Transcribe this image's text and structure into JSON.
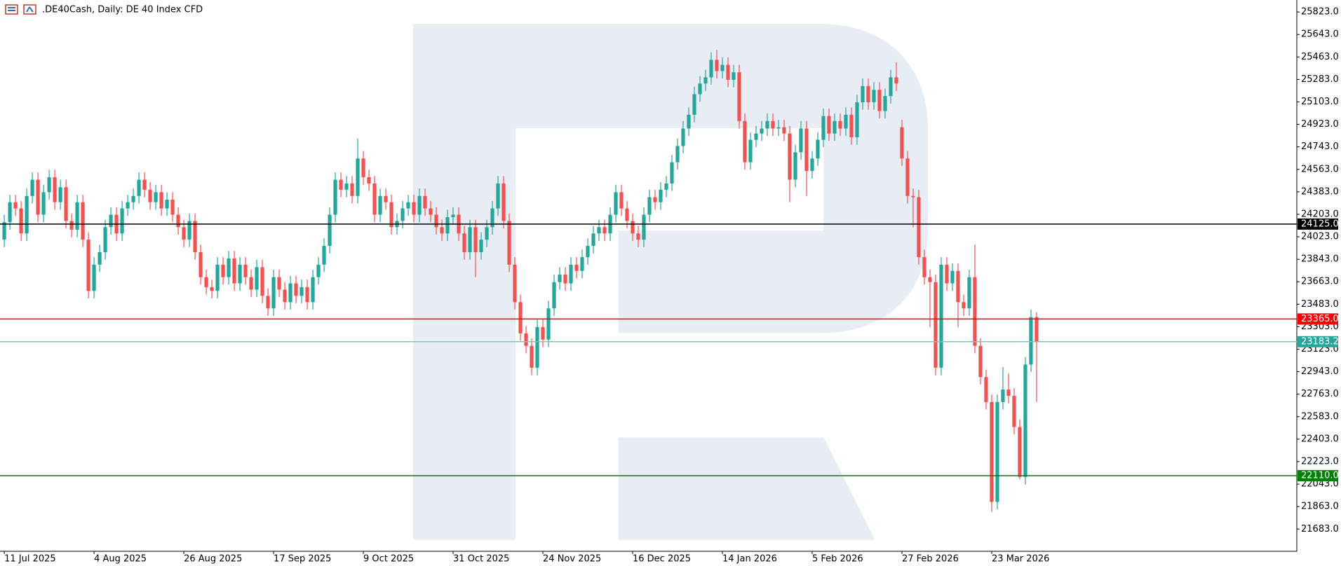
{
  "chart_data": {
    "type": "candlestick",
    "title": ".DE40Cash, Daily:  DE 40 Index CFD",
    "up_color": "#26a69a",
    "down_color": "#ef5350",
    "ylim": [
      21505,
      25919
    ],
    "yticks": [
      {
        "value": 25823,
        "label": "25823.0"
      },
      {
        "value": 25643,
        "label": "25643.0"
      },
      {
        "value": 25463,
        "label": "25463.0"
      },
      {
        "value": 25283,
        "label": "25283.0"
      },
      {
        "value": 25103,
        "label": "25103.0"
      },
      {
        "value": 24923,
        "label": "24923.0"
      },
      {
        "value": 24743,
        "label": "24743.0"
      },
      {
        "value": 24563,
        "label": "24563.0"
      },
      {
        "value": 24383,
        "label": "24383.0"
      },
      {
        "value": 24203,
        "label": "24203.0"
      },
      {
        "value": 24023,
        "label": "24023.0"
      },
      {
        "value": 23843,
        "label": "23843.0"
      },
      {
        "value": 23663,
        "label": "23663.0"
      },
      {
        "value": 23483,
        "label": "23483.0"
      },
      {
        "value": 23303,
        "label": "23303.0"
      },
      {
        "value": 23123,
        "label": "23123.0"
      },
      {
        "value": 22943,
        "label": "22943.0"
      },
      {
        "value": 22763,
        "label": "22763.0"
      },
      {
        "value": 22583,
        "label": "22583.0"
      },
      {
        "value": 22403,
        "label": "22403.0"
      },
      {
        "value": 22223,
        "label": "22223.0"
      },
      {
        "value": 22043,
        "label": "22043.0"
      },
      {
        "value": 21863,
        "label": "21863.0"
      },
      {
        "value": 21683,
        "label": "21683.0"
      }
    ],
    "x_labels": [
      {
        "index": 0,
        "label": "11 Jul 2025"
      },
      {
        "index": 16,
        "label": "4 Aug 2025"
      },
      {
        "index": 32,
        "label": "26 Aug 2025"
      },
      {
        "index": 48,
        "label": "17 Sep 2025"
      },
      {
        "index": 64,
        "label": "9 Oct 2025"
      },
      {
        "index": 80,
        "label": "31 Oct 2025"
      },
      {
        "index": 96,
        "label": "24 Nov 2025"
      },
      {
        "index": 112,
        "label": "16 Dec 2025"
      },
      {
        "index": 128,
        "label": "14 Jan 2026"
      },
      {
        "index": 144,
        "label": "5 Feb 2026"
      },
      {
        "index": 160,
        "label": "27 Feb 2026"
      },
      {
        "index": 176,
        "label": "23 Mar 2026"
      }
    ],
    "levels": [
      {
        "value": 24125,
        "label": "24125.0",
        "color": "#000000",
        "box": "#000000"
      },
      {
        "value": 23365,
        "label": "23365.0",
        "color": "#ff0000",
        "box": "#ff0000"
      },
      {
        "value": 23183.2,
        "label": "23183.2",
        "color": "#80c4c0",
        "box": "#26a69a"
      },
      {
        "value": 22110,
        "label": "22110.0",
        "color": "#008000",
        "box": "#008000"
      }
    ],
    "ohlc": [
      [
        24000,
        24200,
        23940,
        24140
      ],
      [
        24140,
        24360,
        24080,
        24300
      ],
      [
        24300,
        24360,
        24190,
        24250
      ],
      [
        24250,
        24310,
        23990,
        24050
      ],
      [
        24050,
        24410,
        23990,
        24350
      ],
      [
        24350,
        24540,
        24290,
        24480
      ],
      [
        24480,
        24540,
        24140,
        24200
      ],
      [
        24200,
        24440,
        24140,
        24380
      ],
      [
        24380,
        24560,
        24320,
        24500
      ],
      [
        24500,
        24560,
        24240,
        24300
      ],
      [
        24300,
        24480,
        24240,
        24420
      ],
      [
        24420,
        24480,
        24090,
        24150
      ],
      [
        24150,
        24210,
        24020,
        24080
      ],
      [
        24080,
        24360,
        24020,
        24300
      ],
      [
        24300,
        24360,
        23940,
        24000
      ],
      [
        24000,
        24060,
        23530,
        23590
      ],
      [
        23590,
        23860,
        23530,
        23800
      ],
      [
        23800,
        23960,
        23740,
        23900
      ],
      [
        23900,
        24160,
        23840,
        24100
      ],
      [
        24100,
        24260,
        24040,
        24200
      ],
      [
        24200,
        24260,
        23990,
        24050
      ],
      [
        24050,
        24310,
        23990,
        24250
      ],
      [
        24250,
        24360,
        24190,
        24300
      ],
      [
        24300,
        24410,
        24240,
        24350
      ],
      [
        24350,
        24540,
        24290,
        24480
      ],
      [
        24480,
        24540,
        24340,
        24400
      ],
      [
        24400,
        24460,
        24240,
        24300
      ],
      [
        24300,
        24440,
        24240,
        24380
      ],
      [
        24380,
        24440,
        24190,
        24250
      ],
      [
        24250,
        24380,
        24190,
        24320
      ],
      [
        24320,
        24380,
        24140,
        24200
      ],
      [
        24200,
        24260,
        24040,
        24100
      ],
      [
        24100,
        24160,
        23940,
        24000
      ],
      [
        24000,
        24210,
        23940,
        24150
      ],
      [
        24150,
        24210,
        23840,
        23900
      ],
      [
        23900,
        23960,
        23640,
        23700
      ],
      [
        23700,
        23760,
        23560,
        23620
      ],
      [
        23620,
        23680,
        23530,
        23590
      ],
      [
        23590,
        23860,
        23530,
        23800
      ],
      [
        23800,
        23860,
        23640,
        23700
      ],
      [
        23700,
        23910,
        23640,
        23850
      ],
      [
        23850,
        23910,
        23590,
        23650
      ],
      [
        23650,
        23860,
        23590,
        23800
      ],
      [
        23800,
        23860,
        23640,
        23700
      ],
      [
        23700,
        23760,
        23540,
        23600
      ],
      [
        23600,
        23840,
        23540,
        23780
      ],
      [
        23780,
        23840,
        23490,
        23550
      ],
      [
        23550,
        23610,
        23390,
        23450
      ],
      [
        23450,
        23760,
        23390,
        23700
      ],
      [
        23700,
        23760,
        23540,
        23600
      ],
      [
        23600,
        23660,
        23440,
        23500
      ],
      [
        23500,
        23710,
        23440,
        23650
      ],
      [
        23650,
        23710,
        23490,
        23550
      ],
      [
        23550,
        23680,
        23490,
        23620
      ],
      [
        23620,
        23680,
        23440,
        23500
      ],
      [
        23500,
        23760,
        23440,
        23700
      ],
      [
        23700,
        23860,
        23640,
        23800
      ],
      [
        23800,
        24010,
        23740,
        23950
      ],
      [
        23950,
        24260,
        23890,
        24200
      ],
      [
        24200,
        24540,
        24140,
        24480
      ],
      [
        24480,
        24540,
        24340,
        24400
      ],
      [
        24400,
        24510,
        24340,
        24450
      ],
      [
        24450,
        24510,
        24290,
        24350
      ],
      [
        24350,
        24810,
        24290,
        24650
      ],
      [
        24650,
        24710,
        24440,
        24500
      ],
      [
        24500,
        24560,
        24390,
        24450
      ],
      [
        24450,
        24510,
        24140,
        24200
      ],
      [
        24200,
        24410,
        24140,
        24350
      ],
      [
        24350,
        24410,
        24240,
        24300
      ],
      [
        24300,
        24360,
        24040,
        24100
      ],
      [
        24100,
        24210,
        24040,
        24150
      ],
      [
        24150,
        24310,
        24090,
        24250
      ],
      [
        24250,
        24360,
        24190,
        24300
      ],
      [
        24300,
        24360,
        24140,
        24200
      ],
      [
        24200,
        24410,
        24140,
        24350
      ],
      [
        24350,
        24410,
        24190,
        24250
      ],
      [
        24250,
        24310,
        24140,
        24200
      ],
      [
        24200,
        24260,
        24040,
        24100
      ],
      [
        24100,
        24160,
        23990,
        24050
      ],
      [
        24050,
        24240,
        23990,
        24180
      ],
      [
        24180,
        24260,
        24120,
        24200
      ],
      [
        24200,
        24260,
        23990,
        24050
      ],
      [
        24050,
        24110,
        23840,
        23900
      ],
      [
        23900,
        24160,
        23840,
        24100
      ],
      [
        24100,
        24160,
        23700,
        23900
      ],
      [
        23900,
        24060,
        23840,
        24000
      ],
      [
        24000,
        24160,
        23940,
        24100
      ],
      [
        24100,
        24310,
        24040,
        24250
      ],
      [
        24250,
        24510,
        24190,
        24450
      ],
      [
        24450,
        24510,
        24090,
        24150
      ],
      [
        24150,
        24210,
        23740,
        23800
      ],
      [
        23800,
        23860,
        23440,
        23500
      ],
      [
        23500,
        23560,
        23190,
        23250
      ],
      [
        23250,
        23310,
        23090,
        23150
      ],
      [
        23150,
        23210,
        22915,
        22975
      ],
      [
        22975,
        23360,
        22915,
        23300
      ],
      [
        23300,
        23360,
        23140,
        23200
      ],
      [
        23200,
        23510,
        23140,
        23450
      ],
      [
        23450,
        23720,
        23390,
        23660
      ],
      [
        23660,
        23780,
        23600,
        23720
      ],
      [
        23720,
        23780,
        23590,
        23650
      ],
      [
        23650,
        23860,
        23590,
        23800
      ],
      [
        23800,
        23860,
        23690,
        23750
      ],
      [
        23750,
        23920,
        23690,
        23860
      ],
      [
        23860,
        24010,
        23800,
        23950
      ],
      [
        23950,
        24110,
        23890,
        24050
      ],
      [
        24050,
        24160,
        23990,
        24100
      ],
      [
        24100,
        24160,
        23990,
        24050
      ],
      [
        24050,
        24260,
        23990,
        24200
      ],
      [
        24200,
        24440,
        24140,
        24380
      ],
      [
        24380,
        24440,
        24190,
        24250
      ],
      [
        24250,
        24310,
        24090,
        24150
      ],
      [
        24150,
        24210,
        23990,
        24050
      ],
      [
        24050,
        24110,
        23940,
        24000
      ],
      [
        24000,
        24260,
        23940,
        24200
      ],
      [
        24200,
        24400,
        24140,
        24340
      ],
      [
        24340,
        24400,
        24240,
        24300
      ],
      [
        24300,
        24460,
        24240,
        24400
      ],
      [
        24400,
        24510,
        24340,
        24450
      ],
      [
        24450,
        24680,
        24390,
        24620
      ],
      [
        24620,
        24810,
        24560,
        24750
      ],
      [
        24750,
        24950,
        24690,
        24890
      ],
      [
        24890,
        25060,
        24830,
        25000
      ],
      [
        25000,
        25225,
        24940,
        25165
      ],
      [
        25165,
        25310,
        25105,
        25250
      ],
      [
        25250,
        25360,
        25190,
        25300
      ],
      [
        25300,
        25500,
        25240,
        25440
      ],
      [
        25440,
        25520,
        25290,
        25350
      ],
      [
        25350,
        25460,
        25290,
        25400
      ],
      [
        25400,
        25460,
        25220,
        25280
      ],
      [
        25280,
        25400,
        25220,
        25340
      ],
      [
        25340,
        25400,
        24890,
        24950
      ],
      [
        24950,
        25010,
        24560,
        24620
      ],
      [
        24620,
        24860,
        24560,
        24800
      ],
      [
        24800,
        24910,
        24740,
        24850
      ],
      [
        24850,
        24950,
        24790,
        24890
      ],
      [
        24890,
        25010,
        24830,
        24950
      ],
      [
        24950,
        25010,
        24830,
        24890
      ],
      [
        24890,
        24960,
        24830,
        24900
      ],
      [
        24900,
        24960,
        24790,
        24850
      ],
      [
        24850,
        24910,
        24300,
        24480
      ],
      [
        24480,
        24760,
        24420,
        24700
      ],
      [
        24700,
        24950,
        24640,
        24890
      ],
      [
        24890,
        24950,
        24350,
        24550
      ],
      [
        24550,
        24710,
        24490,
        24650
      ],
      [
        24650,
        24860,
        24590,
        24800
      ],
      [
        24800,
        25050,
        24740,
        24990
      ],
      [
        24990,
        25050,
        24790,
        24850
      ],
      [
        24850,
        25010,
        24790,
        24950
      ],
      [
        24950,
        25010,
        24830,
        24890
      ],
      [
        24890,
        25060,
        24830,
        25000
      ],
      [
        25000,
        25060,
        24760,
        24820
      ],
      [
        24820,
        25160,
        24760,
        25100
      ],
      [
        25100,
        25290,
        25040,
        25230
      ],
      [
        25230,
        25290,
        25040,
        25100
      ],
      [
        25100,
        25260,
        25040,
        25200
      ],
      [
        25200,
        25260,
        24970,
        25030
      ],
      [
        25030,
        25210,
        24970,
        25150
      ],
      [
        25150,
        25360,
        25090,
        25300
      ],
      [
        25300,
        25420,
        25190,
        25250
      ],
      [
        24900,
        24960,
        24590,
        24650
      ],
      [
        24650,
        24710,
        24290,
        24350
      ],
      [
        24350,
        24410,
        24100,
        24340
      ],
      [
        24340,
        24400,
        23800,
        23860
      ],
      [
        23860,
        23920,
        23640,
        23700
      ],
      [
        23700,
        23760,
        23300,
        23660
      ],
      [
        23660,
        23720,
        22915,
        22975
      ],
      [
        22975,
        23860,
        22915,
        23800
      ],
      [
        23800,
        23860,
        23590,
        23650
      ],
      [
        23650,
        23810,
        23590,
        23750
      ],
      [
        23750,
        23810,
        23300,
        23500
      ],
      [
        23500,
        23560,
        23390,
        23450
      ],
      [
        23450,
        23760,
        23390,
        23700
      ],
      [
        23700,
        23960,
        23090,
        23150
      ],
      [
        23150,
        23210,
        22840,
        22900
      ],
      [
        22900,
        22960,
        22640,
        22700
      ],
      [
        22700,
        22760,
        21820,
        21900
      ],
      [
        21900,
        22760,
        21840,
        22700
      ],
      [
        22700,
        22980,
        22640,
        22800
      ],
      [
        22800,
        22930,
        22690,
        22750
      ],
      [
        22750,
        22810,
        22440,
        22500
      ],
      [
        22500,
        22560,
        22080,
        22100
      ],
      [
        22100,
        23060,
        22040,
        23000
      ],
      [
        23000,
        23440,
        22940,
        23380
      ],
      [
        23380,
        23420,
        22700,
        23183.2
      ]
    ]
  }
}
